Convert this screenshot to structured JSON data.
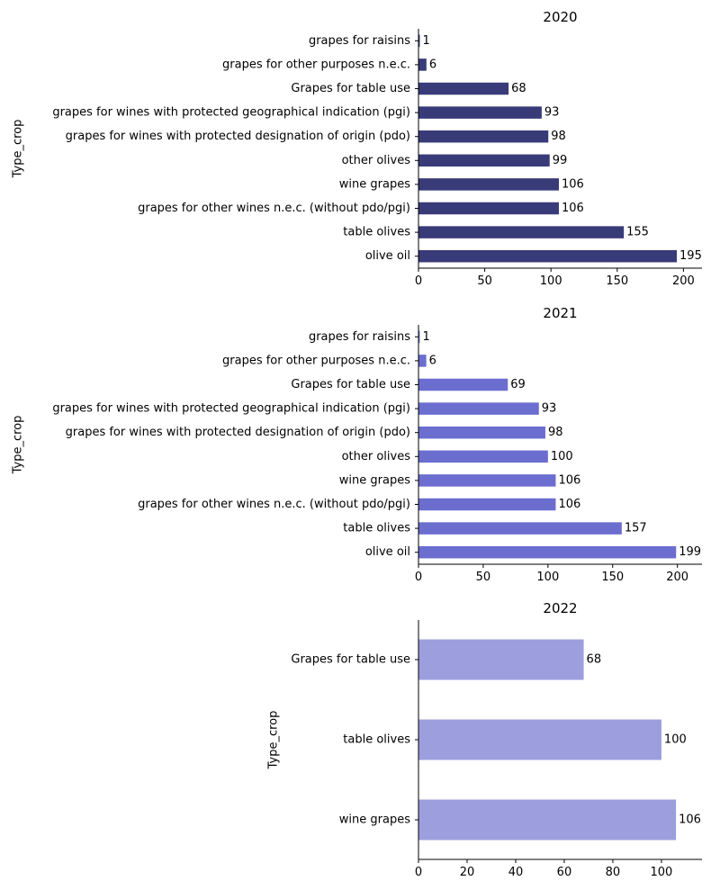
{
  "chart_data": [
    {
      "type": "bar",
      "orientation": "horizontal",
      "title": "2020",
      "ylabel": "Type_crop",
      "xlabel": "",
      "xlim": [
        0,
        214
      ],
      "xticks": [
        0,
        50,
        100,
        150,
        200
      ],
      "color": "#393b79",
      "grid": false,
      "categories": [
        "grapes for raisins",
        "grapes for other purposes n.e.c.",
        "Grapes for table use",
        "grapes for wines with protected geographical indication (pgi)",
        "grapes for wines with protected designation of origin (pdo)",
        "other olives",
        "wine grapes",
        "grapes for other wines n.e.c. (without pdo/pgi)",
        "table olives",
        "olive oil"
      ],
      "values": [
        1,
        6,
        68,
        93,
        98,
        99,
        106,
        106,
        155,
        195
      ]
    },
    {
      "type": "bar",
      "orientation": "horizontal",
      "title": "2021",
      "ylabel": "Type_crop",
      "xlabel": "",
      "xlim": [
        0,
        219
      ],
      "xticks": [
        0,
        50,
        100,
        150,
        200
      ],
      "color": "#6b6ecf",
      "grid": false,
      "categories": [
        "grapes for raisins",
        "grapes for other purposes n.e.c.",
        "Grapes for table use",
        "grapes for wines with protected geographical indication (pgi)",
        "grapes for wines with protected designation of origin (pdo)",
        "other olives",
        "wine grapes",
        "grapes for other wines n.e.c. (without pdo/pgi)",
        "table olives",
        "olive oil"
      ],
      "values": [
        1,
        6,
        69,
        93,
        98,
        100,
        106,
        106,
        157,
        199
      ]
    },
    {
      "type": "bar",
      "orientation": "horizontal",
      "title": "2022",
      "ylabel": "Type_crop",
      "xlabel": "",
      "xlim": [
        0,
        116.7
      ],
      "xticks": [
        0,
        20,
        40,
        60,
        80,
        100
      ],
      "color": "#9c9ede",
      "grid": false,
      "categories": [
        "Grapes for table use",
        "table olives",
        "wine grapes"
      ],
      "values": [
        68,
        100,
        106
      ]
    }
  ]
}
